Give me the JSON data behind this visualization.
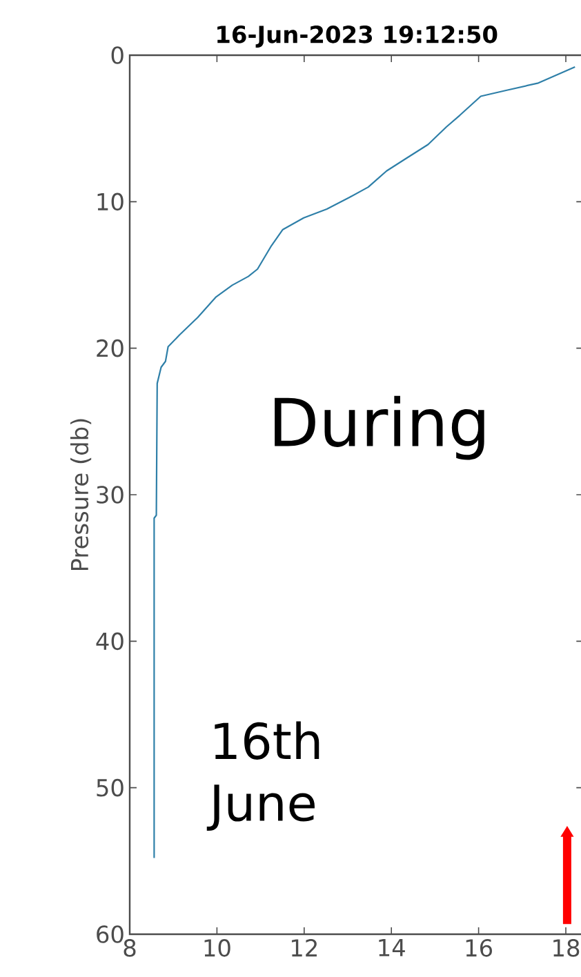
{
  "chart_data": {
    "type": "line",
    "title": "16-Jun-2023 19:12:50",
    "ylabel": "Pressure (db)",
    "annotations": [
      "During",
      "16th June"
    ],
    "xlim": [
      8,
      18.4
    ],
    "xticks": [
      8,
      10,
      12,
      14,
      16,
      18
    ],
    "ylim": [
      60,
      0
    ],
    "yticks": [
      0,
      10,
      20,
      30,
      40,
      50,
      60
    ],
    "series": [
      {
        "color": "#2e7fa8",
        "x": [
          18.21,
          17.37,
          16.63,
          16.05,
          15.57,
          15.26,
          14.84,
          14.31,
          13.89,
          13.47,
          13.04,
          12.52,
          11.99,
          11.51,
          11.25,
          10.93,
          10.72,
          10.35,
          9.98,
          9.56,
          9.14,
          8.88,
          8.82,
          8.72,
          8.63,
          8.61,
          8.56,
          8.56
        ],
        "values": [
          0.8,
          1.9,
          2.4,
          2.8,
          4.1,
          4.9,
          6.1,
          7.1,
          7.9,
          9.0,
          9.7,
          10.5,
          11.1,
          11.9,
          13.0,
          14.6,
          15.1,
          15.7,
          16.5,
          17.9,
          19.1,
          19.9,
          20.9,
          21.3,
          22.4,
          31.4,
          31.6,
          54.8
        ]
      }
    ]
  }
}
